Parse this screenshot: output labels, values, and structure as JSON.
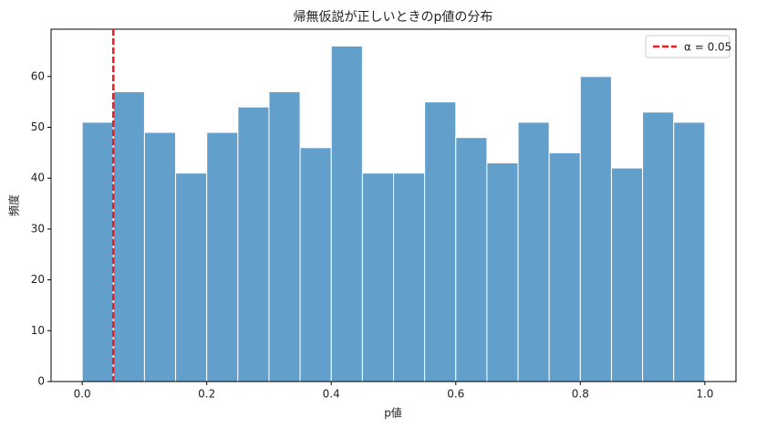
{
  "chart_data": {
    "type": "histogram",
    "title": "帰無仮説が正しいときのp値の分布",
    "xlabel": "p値",
    "ylabel": "頻度",
    "bins": [
      0,
      0.05,
      0.1,
      0.15,
      0.2,
      0.25,
      0.3,
      0.35,
      0.4,
      0.45,
      0.5,
      0.55,
      0.6,
      0.65,
      0.7,
      0.75,
      0.8,
      0.85,
      0.9,
      0.95,
      1
    ],
    "counts": [
      51,
      57,
      49,
      41,
      49,
      54,
      57,
      46,
      66,
      41,
      41,
      55,
      48,
      43,
      51,
      45,
      60,
      42,
      53,
      51
    ],
    "color": "#62a0cb",
    "edgecolor": "#ffffff",
    "xlim": [
      -0.05,
      1.05
    ],
    "xticks": [
      {
        "value": 0,
        "label": "0.0"
      },
      0.2,
      0.4,
      0.6,
      0.8,
      {
        "value": 1,
        "label": "1.0"
      }
    ],
    "ylim": [
      0,
      69.3
    ],
    "yticks": [
      0,
      10,
      20,
      30,
      40,
      50,
      60
    ],
    "vline": {
      "value": 0.05,
      "label": "α = 0.05",
      "color": "#ee1c1c",
      "dashed": true
    },
    "legend": "upper right"
  }
}
